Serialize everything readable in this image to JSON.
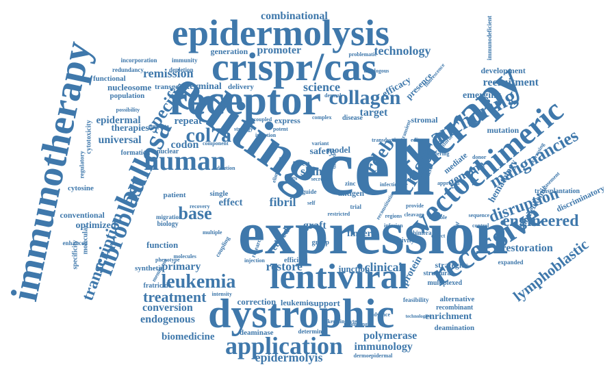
{
  "colors": {
    "word": "#3f78ab",
    "background": "#ffffff"
  },
  "words": [
    "expression",
    "editing",
    "cell",
    "immunotherapy",
    "receptor",
    "crispr/cas",
    "epidermolysis",
    "dystrophic",
    "lentiviral",
    "therapy",
    "recessive",
    "vector",
    "chimeric",
    "bullosa",
    "human",
    "fibroblast",
    "application",
    "anchoring",
    "col7a",
    "collagen",
    "leukemia",
    "transcription",
    "rdeb",
    "base",
    "crispr",
    "specific",
    "malignancies",
    "disruption",
    "engineered",
    "lymphoblastic",
    "treatment",
    "epidermolyis",
    "immunology",
    "polymerase",
    "combinational",
    "technology",
    "promoter",
    "science",
    "target",
    "remission",
    "conversion",
    "endogenous",
    "biomedicine",
    "clinical",
    "restore",
    "primary",
    "universal",
    "therapies",
    "genome",
    "hematology",
    "recruitment",
    "development",
    "emerging",
    "mutation",
    "antileukemic",
    "discriminatory",
    "restoration",
    "enrichment",
    "alternative",
    "deamination",
    "strategies",
    "optimized",
    "conventional",
    "cytosine",
    "codon",
    "repeat",
    "epidermal",
    "effect",
    "function",
    "generation",
    "efficacy",
    "presence",
    "terminal",
    "nucleosome",
    "population",
    "functional",
    "incorporation",
    "immunity",
    "redundancy",
    "depletion",
    "transgene",
    "delivery",
    "model",
    "safety",
    "skin",
    "fibril",
    "graft",
    "finger",
    "edited",
    "support",
    "correction",
    "leukemic",
    "junction",
    "deaminase",
    "determine",
    "autologous",
    "immunodeficient",
    "problematic",
    "express",
    "stromal",
    "cytotoxicity",
    "regulatory",
    "molecular",
    "specificity",
    "enhanced",
    "synthetic",
    "fratricide",
    "biology",
    "migration",
    "coupling",
    "research",
    "group",
    "protein",
    "structural",
    "multiplexed",
    "recombinant",
    "feasibility",
    "technologies",
    "expanded",
    "transplantation",
    "basement",
    "mediate",
    "expressing",
    "phase",
    "antigen",
    "talen",
    "tregs",
    "zinc",
    "trial",
    "guide",
    "single",
    "patient",
    "nuclear",
    "formation",
    "template",
    "strategy",
    "coupled",
    "potent",
    "disease",
    "transient",
    "platform",
    "fluorescence",
    "dermal",
    "efficient",
    "activity",
    "chimera",
    "cleavage",
    "provide",
    "potential",
    "self",
    "membrane",
    "phenotype",
    "injection",
    "component",
    "possibility",
    "molecules",
    "intensity",
    "reconstitution",
    "elimination",
    "secretion",
    "restricted",
    "infection",
    "defect",
    "recovery",
    "disorder",
    "keratinocyte",
    "promising",
    "advance",
    "dermoepidermal",
    "blistering",
    "approach",
    "durable",
    "variant",
    "transduction",
    "editor",
    "sequence",
    "control",
    "regions",
    "infusion",
    "complex",
    "insertion",
    "deletion",
    "multiple",
    "donor"
  ]
}
